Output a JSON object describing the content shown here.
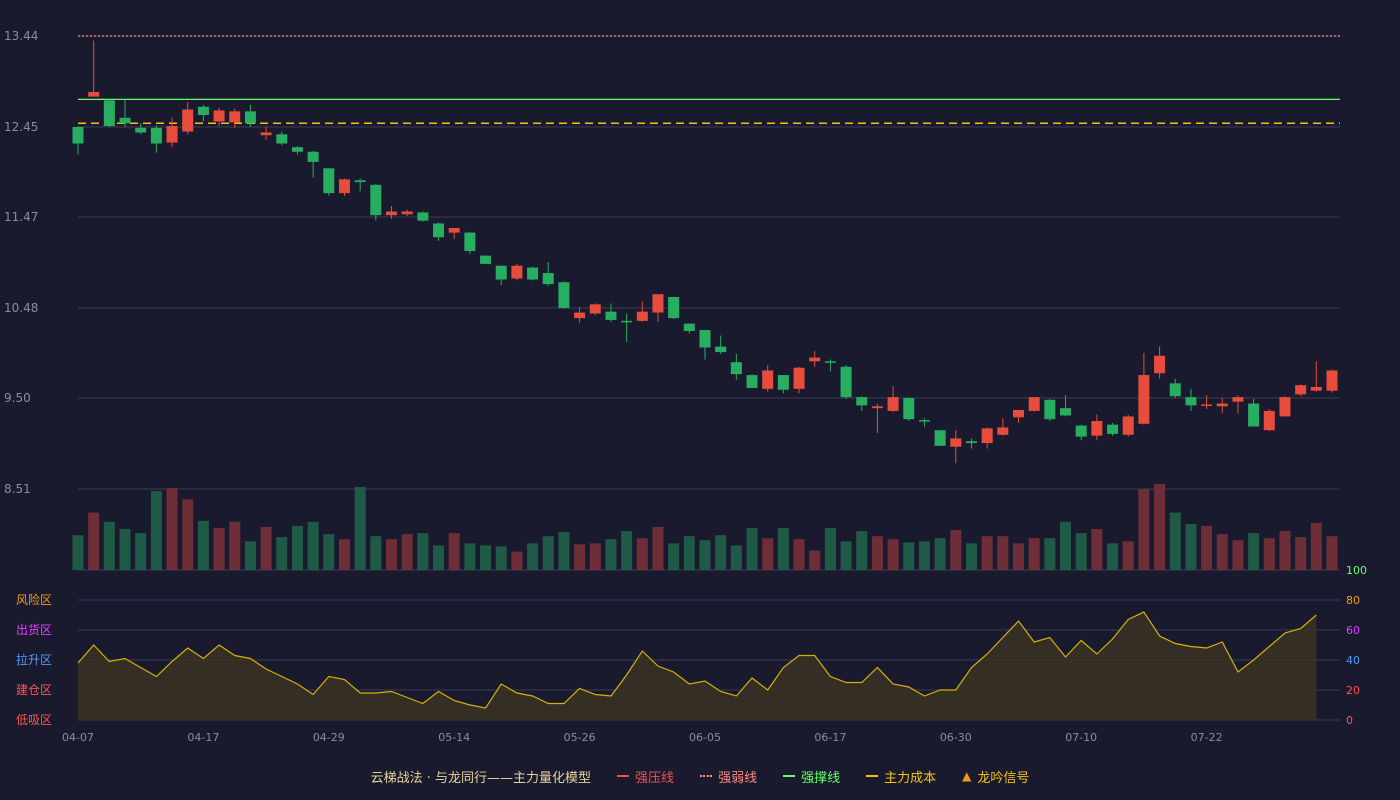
{
  "chart_data": {
    "type": "candlestick",
    "colors": {
      "background": "#1a1a2e",
      "up": "#e74c3c",
      "down": "#27ae60",
      "vol_up": "#6e2e37",
      "vol_down": "#1f5a47",
      "pressure_line": "#ef5350",
      "weak_line": "#ff8a80",
      "support_line": "#66ff66",
      "cost_line": "#f1c40f",
      "signal": "#f39c12",
      "osc_line": "#d4b106",
      "osc_fill": "#3a3322",
      "grid": "#3b3b52",
      "tick": "#8c8ca0"
    },
    "price_axis": {
      "ticks": [
        "13.44",
        "12.45",
        "11.47",
        "10.48",
        "9.50",
        "8.51"
      ],
      "ylim": [
        8.51,
        13.44
      ]
    },
    "x_ticks": [
      {
        "index": 0,
        "label": "04-07"
      },
      {
        "index": 8,
        "label": "04-17"
      },
      {
        "index": 16,
        "label": "04-29"
      },
      {
        "index": 24,
        "label": "05-14"
      },
      {
        "index": 32,
        "label": "05-26"
      },
      {
        "index": 40,
        "label": "06-05"
      },
      {
        "index": 48,
        "label": "06-17"
      },
      {
        "index": 56,
        "label": "06-30"
      },
      {
        "index": 64,
        "label": "07-10"
      },
      {
        "index": 72,
        "label": "07-22"
      }
    ],
    "levels": {
      "pressure": 13.44,
      "support": 12.75,
      "cost": 12.49
    },
    "candles": [
      [
        12.45,
        12.27,
        12.46,
        12.15,
        3.4
      ],
      [
        12.78,
        12.83,
        13.39,
        12.78,
        5.6
      ],
      [
        12.74,
        12.46,
        12.76,
        12.45,
        4.7
      ],
      [
        12.55,
        12.49,
        12.75,
        12.45,
        4.0
      ],
      [
        12.44,
        12.39,
        12.49,
        12.37,
        3.6
      ],
      [
        12.44,
        12.27,
        12.47,
        12.17,
        7.7
      ],
      [
        12.28,
        12.46,
        12.55,
        12.23,
        8.0
      ],
      [
        12.4,
        12.64,
        12.72,
        12.37,
        6.9
      ],
      [
        12.67,
        12.58,
        12.69,
        12.51,
        4.8
      ],
      [
        12.51,
        12.63,
        12.66,
        12.46,
        4.1
      ],
      [
        12.5,
        12.62,
        12.65,
        12.44,
        4.7
      ],
      [
        12.62,
        12.49,
        12.69,
        12.45,
        2.8
      ],
      [
        12.36,
        12.39,
        12.45,
        12.31,
        4.2
      ],
      [
        12.37,
        12.27,
        12.4,
        12.25,
        3.2
      ],
      [
        12.23,
        12.18,
        12.24,
        12.15,
        4.3
      ],
      [
        12.18,
        12.07,
        12.19,
        11.9,
        4.7
      ],
      [
        12.0,
        11.73,
        12.0,
        11.7,
        3.5
      ],
      [
        11.73,
        11.88,
        11.89,
        11.7,
        3.0
      ],
      [
        11.87,
        11.85,
        11.89,
        11.75,
        8.1
      ],
      [
        11.82,
        11.49,
        11.83,
        11.43,
        3.3
      ],
      [
        11.49,
        11.53,
        11.59,
        11.45,
        3.0
      ],
      [
        11.5,
        11.53,
        11.55,
        11.48,
        3.5
      ],
      [
        11.52,
        11.43,
        11.53,
        11.42,
        3.6
      ],
      [
        11.4,
        11.25,
        11.41,
        11.21,
        2.4
      ],
      [
        11.3,
        11.35,
        11.35,
        11.23,
        3.6
      ],
      [
        11.3,
        11.1,
        11.31,
        11.07,
        2.6
      ],
      [
        11.05,
        10.96,
        11.05,
        10.96,
        2.4
      ],
      [
        10.94,
        10.79,
        10.94,
        10.73,
        2.3
      ],
      [
        10.8,
        10.94,
        10.96,
        10.78,
        1.8
      ],
      [
        10.92,
        10.79,
        10.93,
        10.78,
        2.6
      ],
      [
        10.86,
        10.74,
        10.98,
        10.72,
        3.3
      ],
      [
        10.76,
        10.48,
        10.77,
        10.47,
        3.7
      ],
      [
        10.37,
        10.43,
        10.49,
        10.32,
        2.5
      ],
      [
        10.42,
        10.52,
        10.53,
        10.4,
        2.6
      ],
      [
        10.44,
        10.35,
        10.53,
        10.33,
        3.0
      ],
      [
        10.34,
        10.33,
        10.42,
        10.11,
        3.8
      ],
      [
        10.34,
        10.44,
        10.55,
        10.33,
        3.1
      ],
      [
        10.43,
        10.63,
        10.63,
        10.33,
        4.2
      ],
      [
        10.6,
        10.37,
        10.6,
        10.36,
        2.6
      ],
      [
        10.31,
        10.23,
        10.31,
        10.2,
        3.3
      ],
      [
        10.24,
        10.05,
        10.24,
        9.92,
        2.9
      ],
      [
        10.06,
        10.0,
        10.18,
        9.98,
        3.4
      ],
      [
        9.89,
        9.76,
        9.98,
        9.7,
        2.4
      ],
      [
        9.75,
        9.61,
        9.76,
        9.61,
        4.1
      ],
      [
        9.6,
        9.8,
        9.86,
        9.57,
        3.1
      ],
      [
        9.75,
        9.59,
        9.75,
        9.55,
        4.1
      ],
      [
        9.6,
        9.83,
        9.84,
        9.55,
        3.0
      ],
      [
        9.9,
        9.94,
        10.01,
        9.84,
        1.9
      ],
      [
        9.9,
        9.89,
        9.92,
        9.79,
        4.1
      ],
      [
        9.84,
        9.51,
        9.86,
        9.49,
        2.8
      ],
      [
        9.51,
        9.42,
        9.52,
        9.36,
        3.8
      ],
      [
        9.39,
        9.41,
        9.44,
        9.12,
        3.3
      ],
      [
        9.36,
        9.51,
        9.63,
        9.35,
        3.0
      ],
      [
        9.5,
        9.27,
        9.51,
        9.25,
        2.7
      ],
      [
        9.26,
        9.25,
        9.28,
        9.19,
        2.8
      ],
      [
        9.15,
        8.98,
        9.15,
        8.98,
        3.1
      ],
      [
        8.97,
        9.06,
        9.15,
        8.79,
        3.9
      ],
      [
        9.03,
        9.01,
        9.06,
        8.95,
        2.6
      ],
      [
        9.01,
        9.17,
        9.18,
        8.95,
        3.3
      ],
      [
        9.1,
        9.18,
        9.28,
        9.09,
        3.3
      ],
      [
        9.29,
        9.37,
        9.37,
        9.23,
        2.6
      ],
      [
        9.36,
        9.51,
        9.51,
        9.35,
        3.1
      ],
      [
        9.48,
        9.27,
        9.49,
        9.25,
        3.1
      ],
      [
        9.39,
        9.31,
        9.53,
        9.3,
        4.7
      ],
      [
        9.2,
        9.08,
        9.21,
        9.04,
        3.6
      ],
      [
        9.09,
        9.25,
        9.32,
        9.04,
        4.0
      ],
      [
        9.21,
        9.11,
        9.23,
        9.09,
        2.6
      ],
      [
        9.1,
        9.3,
        9.32,
        9.08,
        2.8
      ],
      [
        9.22,
        9.75,
        9.99,
        9.21,
        7.9
      ],
      [
        9.77,
        9.96,
        10.06,
        9.71,
        8.4
      ],
      [
        9.66,
        9.52,
        9.71,
        9.5,
        5.6
      ],
      [
        9.51,
        9.42,
        9.6,
        9.36,
        4.5
      ],
      [
        9.43,
        9.43,
        9.53,
        9.38,
        4.3
      ],
      [
        9.41,
        9.44,
        9.5,
        9.34,
        3.5
      ],
      [
        9.46,
        9.51,
        9.53,
        9.33,
        2.9
      ],
      [
        9.44,
        9.19,
        9.49,
        9.19,
        3.6
      ],
      [
        9.15,
        9.36,
        9.38,
        9.14,
        3.1
      ],
      [
        9.3,
        9.51,
        9.52,
        9.3,
        3.8
      ],
      [
        9.54,
        9.64,
        9.65,
        9.52,
        3.2
      ],
      [
        9.58,
        9.62,
        9.9,
        9.57,
        4.6
      ],
      [
        9.58,
        9.8,
        9.81,
        9.56,
        3.3
      ]
    ],
    "oscillator": {
      "axis_right": [
        "100",
        "80",
        "60",
        "40",
        "20",
        "0"
      ],
      "zones": [
        "风险区",
        "出货区",
        "拉升区",
        "建仓区",
        "低吸区"
      ],
      "zone_colors": [
        "#f39c12",
        "#e040fb",
        "#4d9cff",
        "#ff5252",
        "#ff5252"
      ],
      "right_tick_colors": [
        "#66ff66",
        "#f39c12",
        "#e040fb",
        "#4d9cff",
        "#ff5252",
        "#ff5252"
      ],
      "values": [
        38,
        50,
        39,
        41,
        35,
        29,
        39,
        48,
        41,
        50,
        43,
        41,
        34,
        29,
        24,
        17,
        29,
        27,
        18,
        18,
        19,
        15,
        11,
        19,
        13,
        10,
        8,
        24,
        18,
        16,
        11,
        11,
        21,
        17,
        16,
        30,
        46,
        36,
        32,
        24,
        26,
        19,
        16,
        28,
        20,
        35,
        43,
        43,
        29,
        25,
        25,
        35,
        24,
        22,
        16,
        20,
        20,
        35,
        44,
        55,
        66,
        52,
        55,
        42,
        53,
        44,
        54,
        67,
        72,
        56,
        51,
        49,
        48,
        52,
        32,
        40,
        49,
        58,
        61,
        70
      ]
    }
  },
  "legend": {
    "series": "云梯战法 · 与龙同行——主力量化模型",
    "pressure": "强压线",
    "weak": "强弱线",
    "support": "强撑线",
    "cost": "主力成本",
    "signal": "龙吟信号"
  }
}
